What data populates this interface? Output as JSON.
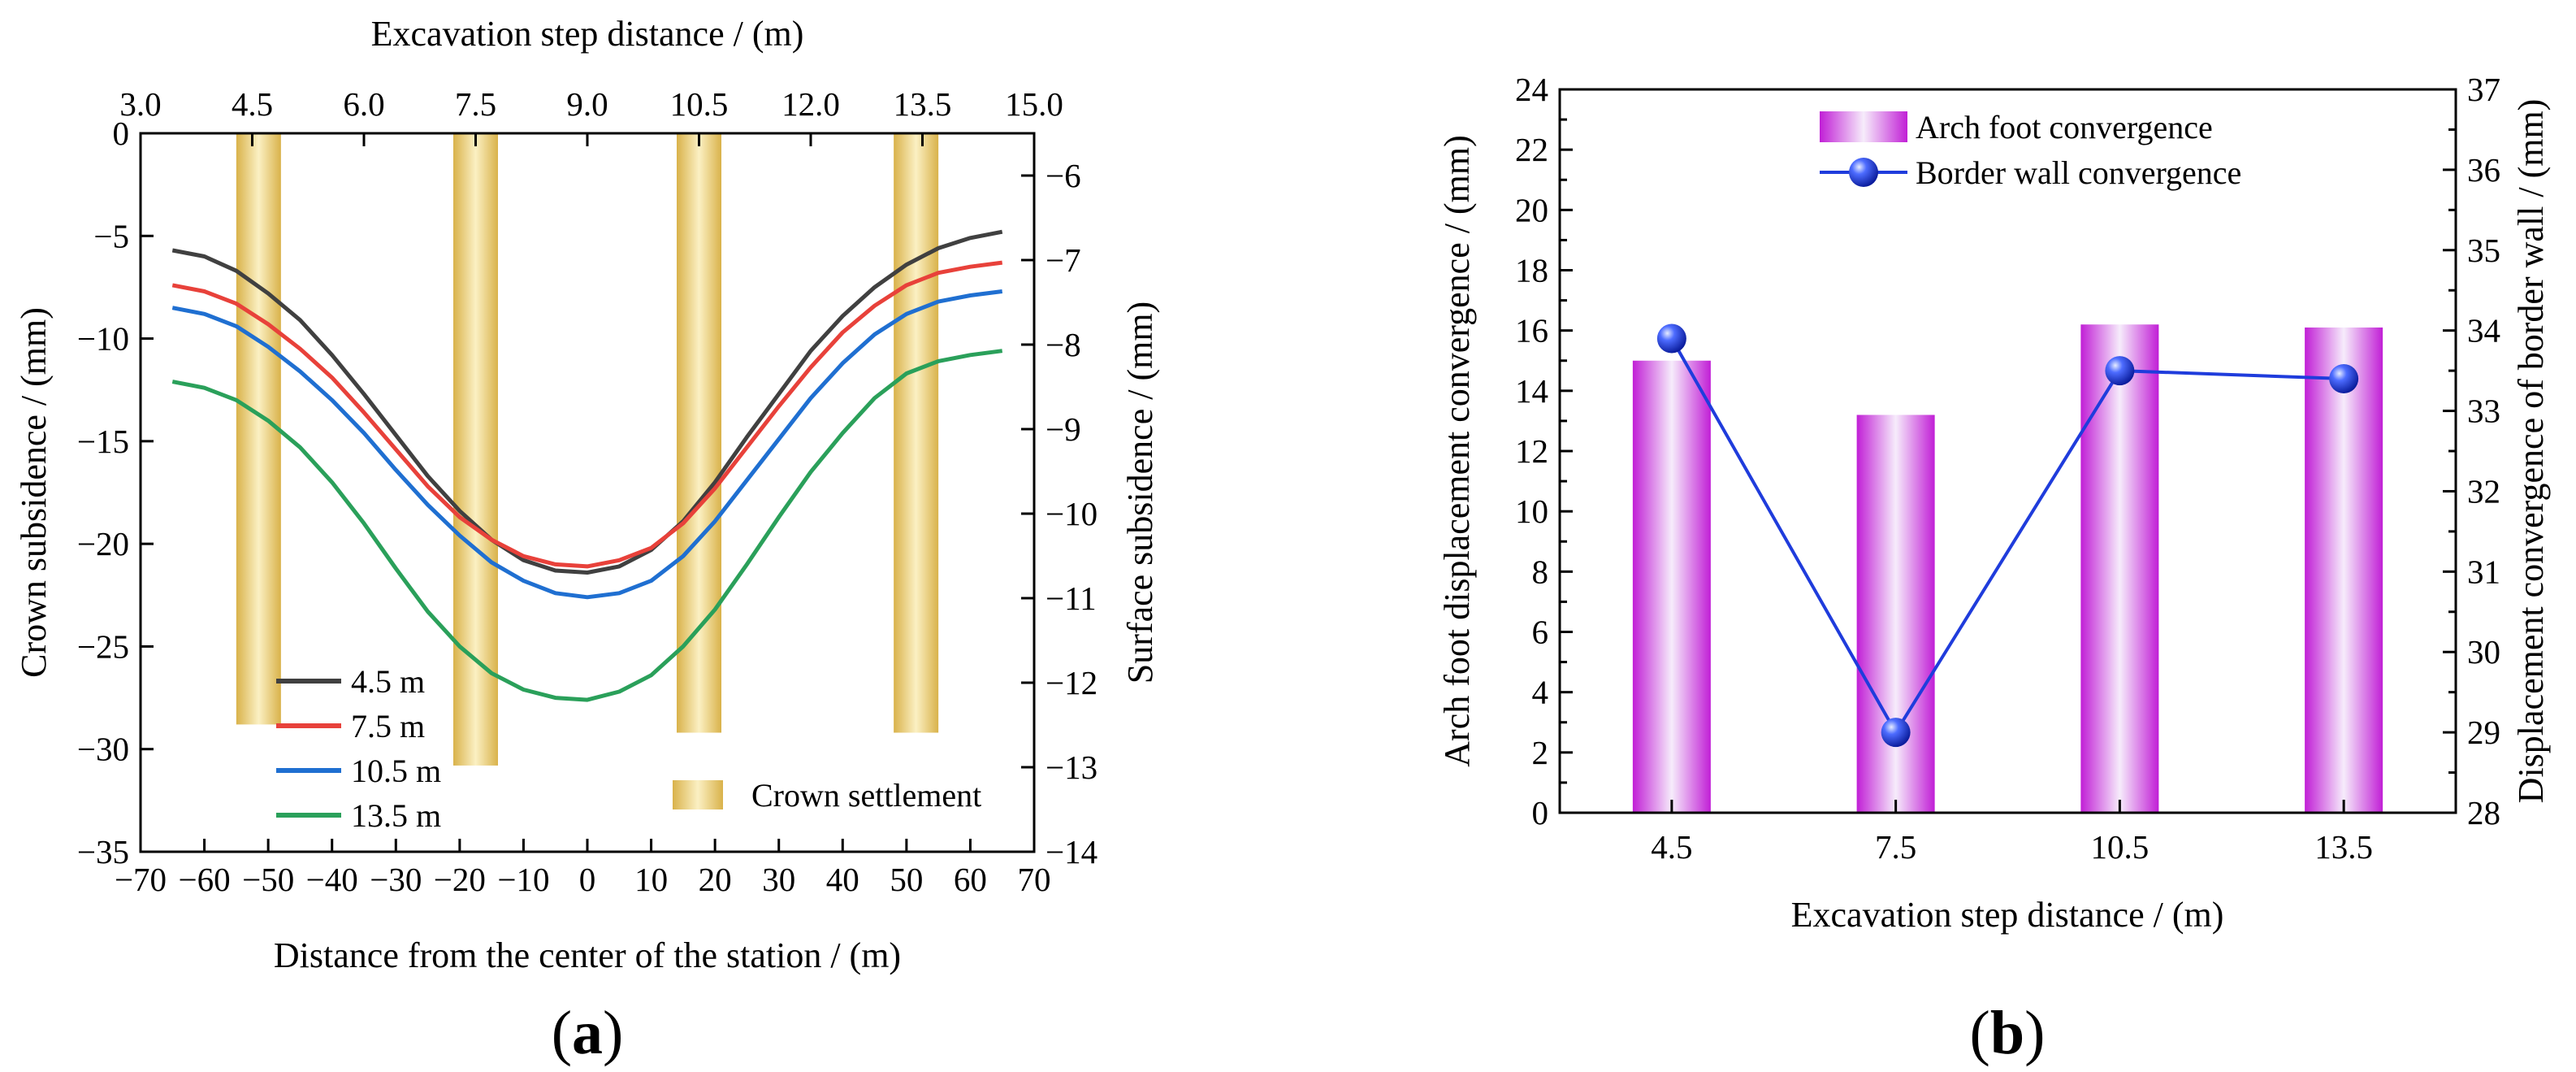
{
  "chart_data": [
    {
      "type": "line",
      "panel_label_letter": "a",
      "xlabel": "Distance from the center of the station / (m)",
      "x2label": "Excavation step distance / (m)",
      "ylabel": "Crown subsidence / (mm)",
      "y2label": "Surface subsidence / (mm)",
      "xlim": [
        -70,
        70
      ],
      "ylim": [
        -35,
        0
      ],
      "x2lim": [
        3.0,
        15.0
      ],
      "y2lim": [
        -14,
        -5.5
      ],
      "x_ticks": [
        -70,
        -60,
        -50,
        -40,
        -30,
        -20,
        -10,
        0,
        10,
        20,
        30,
        40,
        50,
        60,
        70
      ],
      "x_tick_labels": [
        "−70",
        "−60",
        "−50",
        "−40",
        "−30",
        "−20",
        "−10",
        "0",
        "10",
        "20",
        "30",
        "40",
        "50",
        "60",
        "70"
      ],
      "y_ticks": [
        0,
        -5,
        -10,
        -15,
        -20,
        -25,
        -30,
        -35
      ],
      "y_tick_labels": [
        "0",
        "−5",
        "−10",
        "−15",
        "−20",
        "−25",
        "−30",
        "−35"
      ],
      "x2_ticks": [
        3.0,
        4.5,
        6.0,
        7.5,
        9.0,
        10.5,
        12.0,
        13.5,
        15.0
      ],
      "x2_tick_labels": [
        "3.0",
        "4.5",
        "6.0",
        "7.5",
        "9.0",
        "10.5",
        "12.0",
        "13.5",
        "15.0"
      ],
      "y2_ticks": [
        -6,
        -7,
        -8,
        -9,
        -10,
        -11,
        -12,
        -13,
        -14
      ],
      "y2_tick_labels": [
        "−6",
        "−7",
        "−8",
        "−9",
        "−10",
        "−11",
        "−12",
        "−13",
        "−14"
      ],
      "x": [
        -65,
        -60,
        -55,
        -50,
        -45,
        -40,
        -35,
        -30,
        -25,
        -20,
        -15,
        -10,
        -5,
        0,
        5,
        10,
        15,
        20,
        25,
        30,
        35,
        40,
        45,
        50,
        55,
        60,
        65
      ],
      "series": [
        {
          "name": "4.5 m",
          "color": "#404040",
          "values": [
            -5.7,
            -6.0,
            -6.7,
            -7.8,
            -9.1,
            -10.8,
            -12.7,
            -14.7,
            -16.7,
            -18.4,
            -19.8,
            -20.8,
            -21.3,
            -21.4,
            -21.1,
            -20.3,
            -18.9,
            -17.0,
            -14.8,
            -12.7,
            -10.6,
            -8.9,
            -7.5,
            -6.4,
            -5.6,
            -5.1,
            -4.8
          ]
        },
        {
          "name": "7.5 m",
          "color": "#e8413a",
          "values": [
            -7.4,
            -7.7,
            -8.3,
            -9.3,
            -10.5,
            -11.9,
            -13.6,
            -15.4,
            -17.2,
            -18.7,
            -19.8,
            -20.6,
            -21.0,
            -21.1,
            -20.8,
            -20.2,
            -19.0,
            -17.3,
            -15.3,
            -13.3,
            -11.4,
            -9.7,
            -8.4,
            -7.4,
            -6.8,
            -6.5,
            -6.3
          ]
        },
        {
          "name": "10.5 m",
          "color": "#1f6fd1",
          "values": [
            -8.5,
            -8.8,
            -9.4,
            -10.4,
            -11.6,
            -13.0,
            -14.6,
            -16.4,
            -18.1,
            -19.6,
            -20.9,
            -21.8,
            -22.4,
            -22.6,
            -22.4,
            -21.8,
            -20.6,
            -18.9,
            -16.9,
            -14.9,
            -12.9,
            -11.2,
            -9.8,
            -8.8,
            -8.2,
            -7.9,
            -7.7
          ]
        },
        {
          "name": "13.5 m",
          "color": "#2aa05a",
          "values": [
            -12.1,
            -12.4,
            -13.0,
            -14.0,
            -15.3,
            -17.0,
            -19.0,
            -21.2,
            -23.3,
            -25.0,
            -26.3,
            -27.1,
            -27.5,
            -27.6,
            -27.2,
            -26.4,
            -25.0,
            -23.2,
            -21.0,
            -18.7,
            -16.5,
            -14.6,
            -12.9,
            -11.7,
            -11.1,
            -10.8,
            -10.6
          ]
        }
      ],
      "crown_settlement_bars": {
        "name": "Crown settlement",
        "color": "#e9c766",
        "bars": [
          {
            "x_from": -55,
            "x_to": -48,
            "y_bottom": -28.8
          },
          {
            "x_from": -21,
            "x_to": -14,
            "y_bottom": -30.8
          },
          {
            "x_from": 14,
            "x_to": 21,
            "y_bottom": -29.2
          },
          {
            "x_from": 48,
            "x_to": 55,
            "y_bottom": -29.2
          }
        ]
      },
      "legend_position": "bottom-left"
    },
    {
      "type": "bar",
      "panel_label_letter": "b",
      "xlabel": "Excavation step distance / (m)",
      "ylabel": "Arch foot displacement convergence / (mm)",
      "y2label": "Displacement convergence of border wall / (mm)",
      "categories": [
        "4.5",
        "7.5",
        "10.5",
        "13.5"
      ],
      "ylim": [
        0,
        24
      ],
      "y2lim": [
        28,
        37
      ],
      "y_ticks": [
        0,
        2,
        4,
        6,
        8,
        10,
        12,
        14,
        16,
        18,
        20,
        22,
        24
      ],
      "y2_ticks": [
        28,
        29,
        30,
        31,
        32,
        33,
        34,
        35,
        36,
        37
      ],
      "series": [
        {
          "name": "Arch foot convergence",
          "kind": "bar",
          "axis": "left",
          "color": "#cc33dd",
          "values": [
            15.0,
            13.2,
            16.2,
            16.1
          ]
        },
        {
          "name": "Border wall convergence",
          "kind": "line-marker",
          "axis": "right",
          "color": "#1f3cdc",
          "values": [
            33.9,
            29.0,
            33.5,
            33.4
          ]
        }
      ],
      "legend_position": "top-center"
    }
  ]
}
